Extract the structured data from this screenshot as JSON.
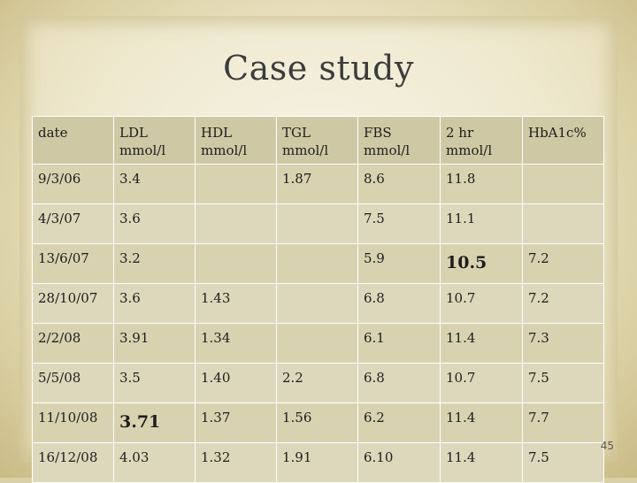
{
  "slide": {
    "title": "Case study",
    "page_number": "45"
  },
  "table": {
    "headers": [
      [
        "date"
      ],
      [
        "LDL",
        "mmol/l"
      ],
      [
        "HDL",
        "mmol/l"
      ],
      [
        "TGL",
        "mmol/l"
      ],
      [
        "FBS",
        "mmol/l"
      ],
      [
        "2 hr",
        "mmol/l"
      ],
      [
        "HbA1c%"
      ]
    ],
    "rows": [
      [
        "9/3/06",
        "3.4",
        "",
        "1.87",
        "8.6",
        "11.8",
        ""
      ],
      [
        "4/3/07",
        "3.6",
        "",
        "",
        "7.5",
        "11.1",
        ""
      ],
      [
        "13/6/07",
        "3.2",
        "",
        "",
        "5.9",
        "10.5",
        "7.2"
      ],
      [
        "28/10/07",
        "3.6",
        "1.43",
        "",
        "6.8",
        "10.7",
        "7.2"
      ],
      [
        "2/2/08",
        "3.91",
        "1.34",
        "",
        "6.1",
        "11.4",
        "7.3"
      ],
      [
        "5/5/08",
        "3.5",
        "1.40",
        "2.2",
        "6.8",
        "10.7",
        "7.5"
      ],
      [
        "11/10/08",
        "3.71",
        "1.37",
        "1.56",
        "6.2",
        "11.4",
        "7.7"
      ],
      [
        "16/12/08",
        "4.03",
        "1.32",
        "1.91",
        "6.10",
        "11.4",
        "7.5"
      ]
    ]
  }
}
